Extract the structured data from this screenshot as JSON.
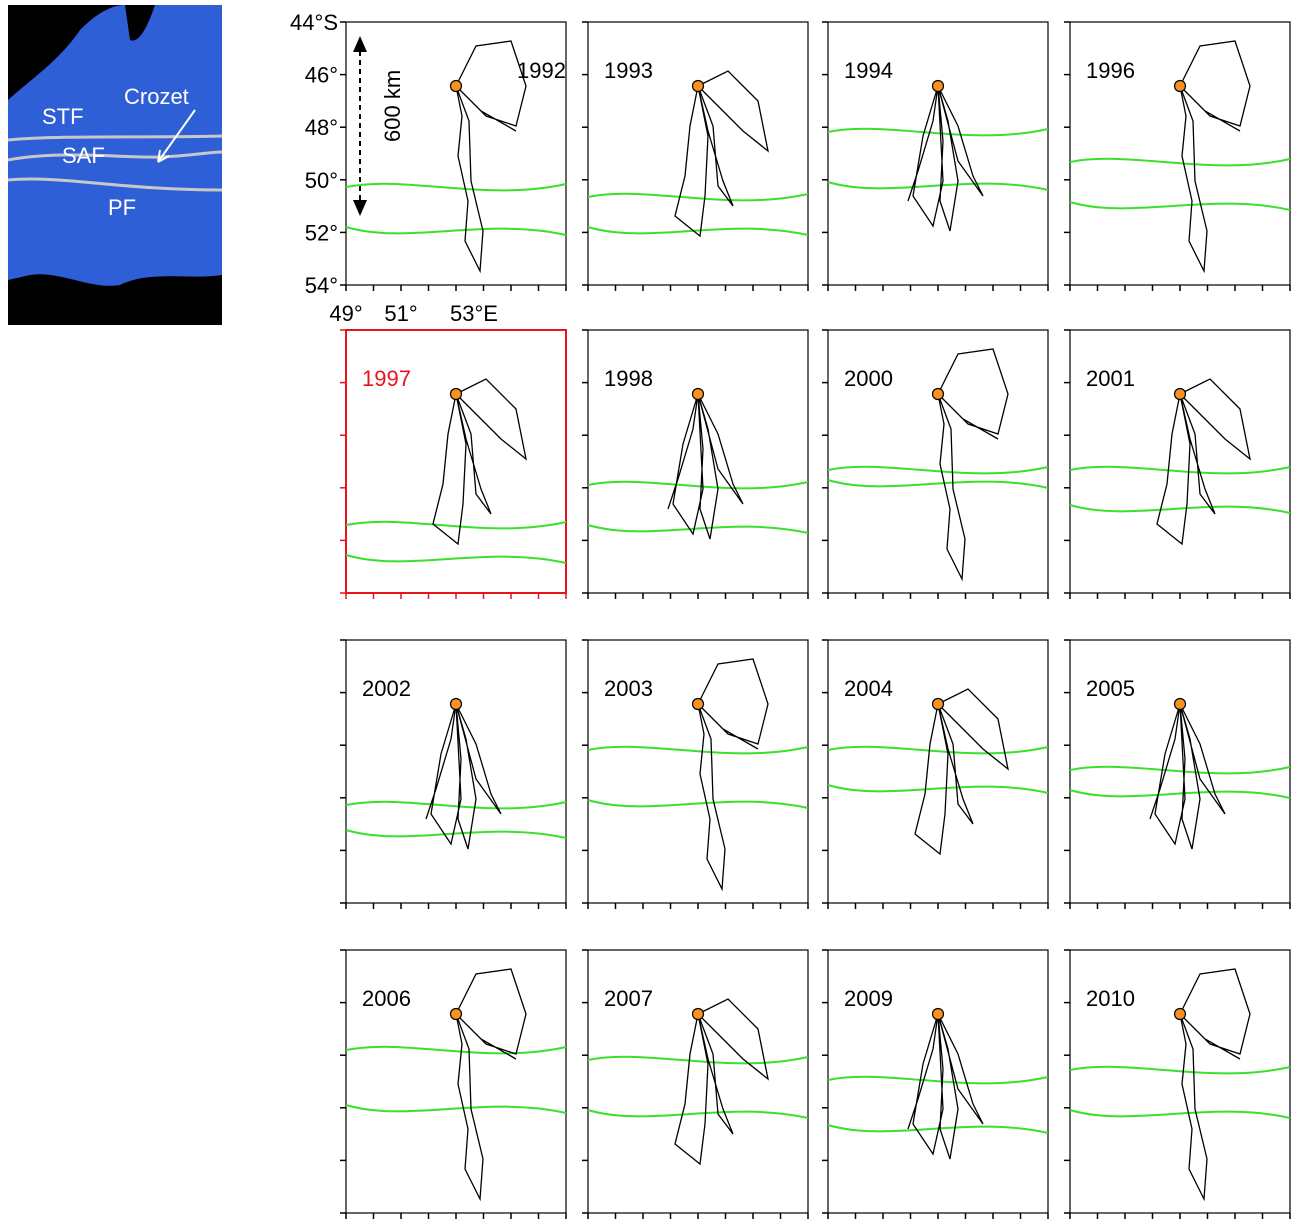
{
  "inset": {
    "labels": [
      "STF",
      "Crozet",
      "SAF",
      "PF"
    ]
  },
  "scale_label": "600 km",
  "yticks": [
    "44°S",
    "46°",
    "48°",
    "50°",
    "52°",
    "54°"
  ],
  "xticks": [
    "49°",
    "51°",
    "53°E"
  ],
  "panels": [
    {
      "year": "1992"
    },
    {
      "year": "1993"
    },
    {
      "year": "1994"
    },
    {
      "year": "1996"
    },
    {
      "year": "1997",
      "color": "#e8141b"
    },
    {
      "year": "1998"
    },
    {
      "year": "2000"
    },
    {
      "year": "2001"
    },
    {
      "year": "2002"
    },
    {
      "year": "2003"
    },
    {
      "year": "2004"
    },
    {
      "year": "2005"
    },
    {
      "year": "2006"
    },
    {
      "year": "2007"
    },
    {
      "year": "2009"
    },
    {
      "year": "2010"
    }
  ]
}
